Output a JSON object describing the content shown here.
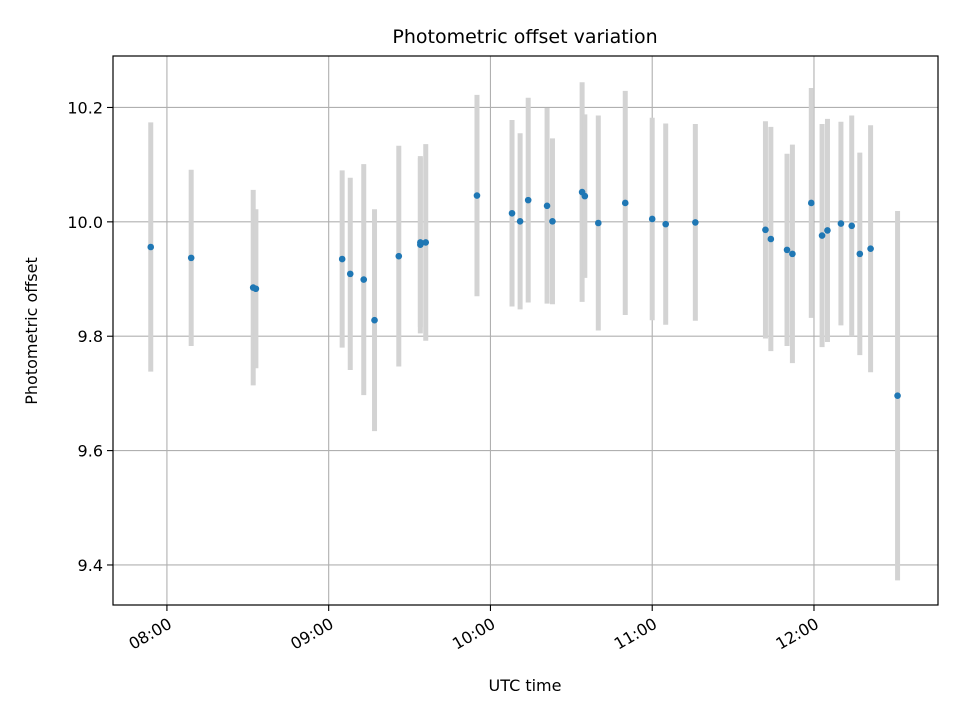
{
  "chart_data": {
    "type": "scatter",
    "title": "Photometric offset variation",
    "xlabel": "UTC time",
    "ylabel": "Photometric offset",
    "x_ticks": [
      "08:00",
      "09:00",
      "10:00",
      "11:00",
      "12:00"
    ],
    "y_ticks": [
      9.4,
      9.6,
      9.8,
      10.0,
      10.2
    ],
    "xlim": [
      "07:40",
      "12:46"
    ],
    "ylim": [
      9.33,
      10.29
    ],
    "grid": true,
    "legend": "none",
    "colors": {
      "point": "#1f77b4",
      "errorbar": "#d3d3d3",
      "grid": "#b0b0b0"
    },
    "points": [
      {
        "x": "07:54",
        "y": 9.956,
        "err": 0.218
      },
      {
        "x": "08:09",
        "y": 9.937,
        "err": 0.154
      },
      {
        "x": "08:32",
        "y": 9.885,
        "err": 0.171
      },
      {
        "x": "08:33",
        "y": 9.883,
        "err": 0.139
      },
      {
        "x": "09:05",
        "y": 9.935,
        "err": 0.155
      },
      {
        "x": "09:08",
        "y": 9.909,
        "err": 0.168
      },
      {
        "x": "09:13",
        "y": 9.899,
        "err": 0.202
      },
      {
        "x": "09:17",
        "y": 9.828,
        "err": 0.194
      },
      {
        "x": "09:26",
        "y": 9.94,
        "err": 0.193
      },
      {
        "x": "09:34",
        "y": 9.96,
        "err": 0.155
      },
      {
        "x": "09:34",
        "y": 9.964,
        "err": 0.148
      },
      {
        "x": "09:36",
        "y": 9.964,
        "err": 0.172
      },
      {
        "x": "09:55",
        "y": 10.046,
        "err": 0.176
      },
      {
        "x": "10:08",
        "y": 10.015,
        "err": 0.163
      },
      {
        "x": "10:11",
        "y": 10.001,
        "err": 0.154
      },
      {
        "x": "10:14",
        "y": 10.038,
        "err": 0.179
      },
      {
        "x": "10:21",
        "y": 10.028,
        "err": 0.171
      },
      {
        "x": "10:23",
        "y": 10.001,
        "err": 0.145
      },
      {
        "x": "10:34",
        "y": 10.052,
        "err": 0.192
      },
      {
        "x": "10:35",
        "y": 10.045,
        "err": 0.143
      },
      {
        "x": "10:40",
        "y": 9.998,
        "err": 0.188
      },
      {
        "x": "10:50",
        "y": 10.033,
        "err": 0.196
      },
      {
        "x": "11:00",
        "y": 10.005,
        "err": 0.177
      },
      {
        "x": "11:05",
        "y": 9.996,
        "err": 0.176
      },
      {
        "x": "11:16",
        "y": 9.999,
        "err": 0.172
      },
      {
        "x": "11:42",
        "y": 9.986,
        "err": 0.19
      },
      {
        "x": "11:44",
        "y": 9.97,
        "err": 0.196
      },
      {
        "x": "11:50",
        "y": 9.951,
        "err": 0.168
      },
      {
        "x": "11:52",
        "y": 9.944,
        "err": 0.191
      },
      {
        "x": "11:59",
        "y": 10.033,
        "err": 0.201
      },
      {
        "x": "12:03",
        "y": 9.976,
        "err": 0.195
      },
      {
        "x": "12:05",
        "y": 9.985,
        "err": 0.195
      },
      {
        "x": "12:10",
        "y": 9.997,
        "err": 0.178
      },
      {
        "x": "12:14",
        "y": 9.993,
        "err": 0.193
      },
      {
        "x": "12:17",
        "y": 9.944,
        "err": 0.177
      },
      {
        "x": "12:21",
        "y": 9.953,
        "err": 0.216
      },
      {
        "x": "12:31",
        "y": 9.696,
        "err": 0.323
      }
    ]
  }
}
